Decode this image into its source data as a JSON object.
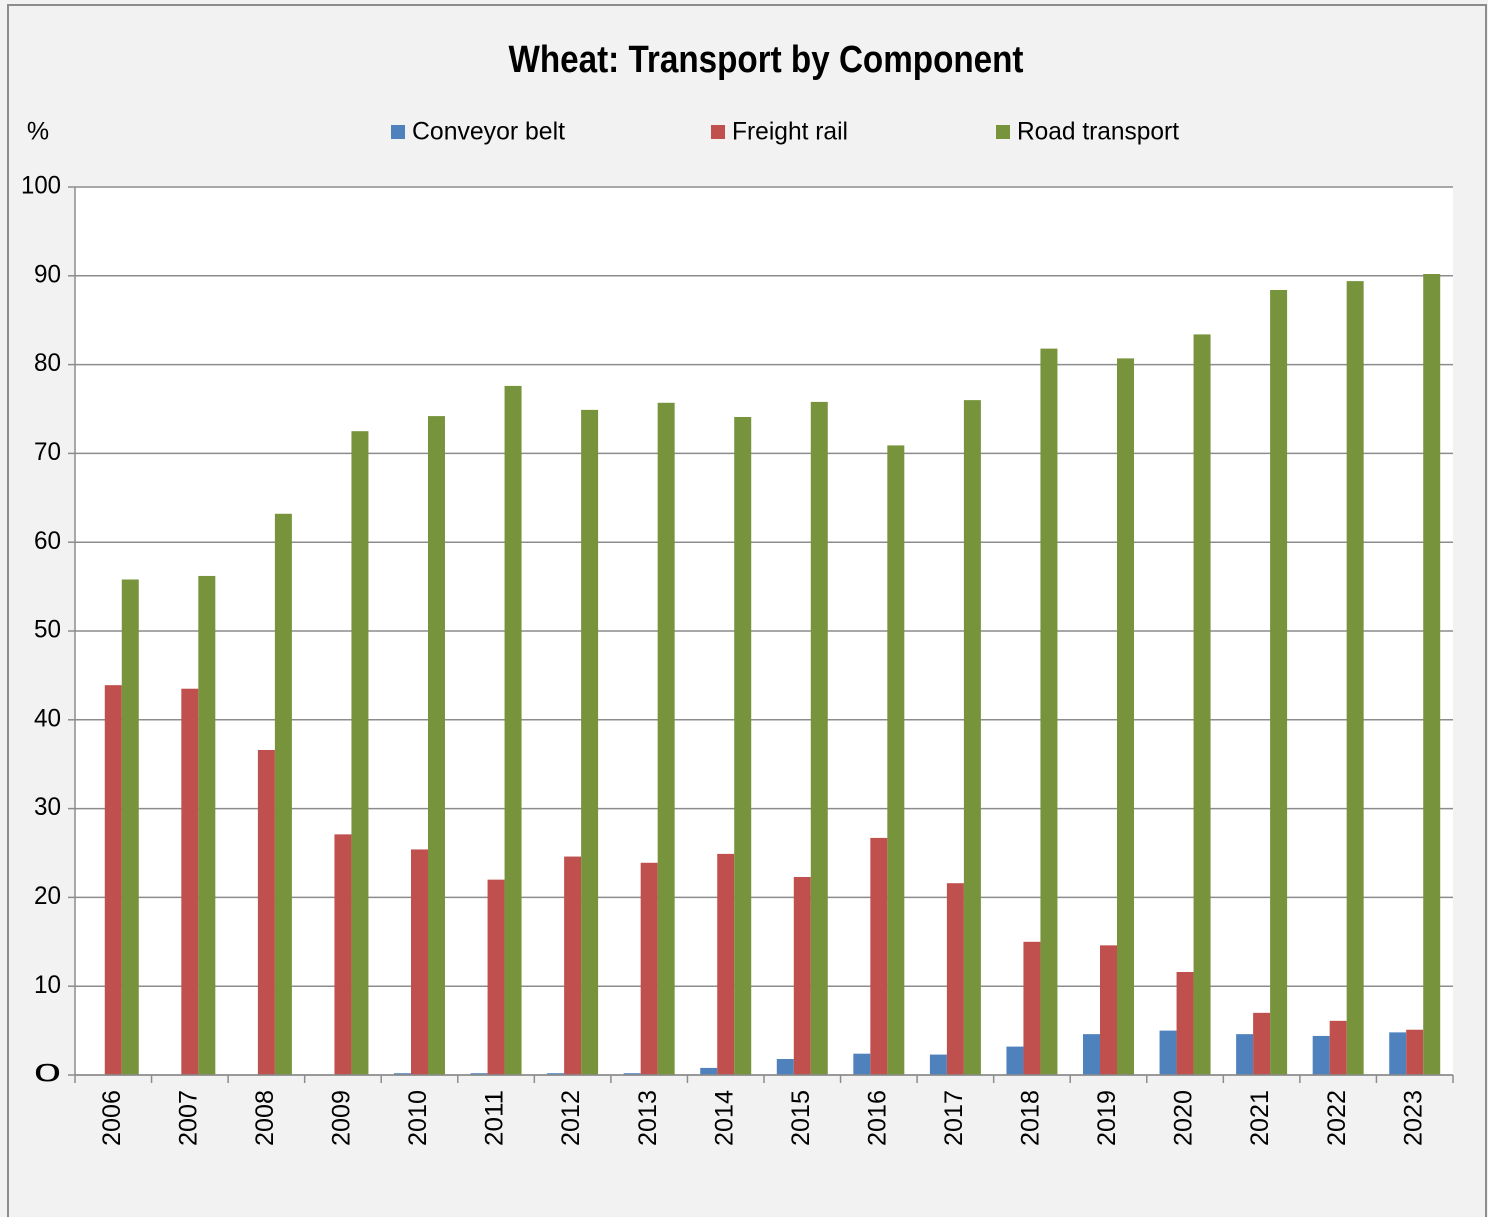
{
  "chart_data": {
    "type": "bar",
    "title": "Wheat: Transport by Component",
    "y_label": "%",
    "categories": [
      "2006",
      "2007",
      "2008",
      "2009",
      "2010",
      "2011",
      "2012",
      "2013",
      "2014",
      "2015",
      "2016",
      "2017",
      "2018",
      "2019",
      "2020",
      "2021",
      "2022",
      "2023"
    ],
    "series": [
      {
        "name": "Conveyor belt",
        "color": "#4f81bd",
        "values": [
          0,
          0,
          0,
          0,
          0.2,
          0.2,
          0.2,
          0.2,
          0.8,
          1.8,
          2.4,
          2.3,
          3.2,
          4.6,
          5.0,
          4.6,
          4.4,
          4.8
        ]
      },
      {
        "name": "Freight rail",
        "color": "#c0504d",
        "values": [
          43.9,
          43.5,
          36.6,
          27.1,
          25.4,
          22.0,
          24.6,
          23.9,
          24.9,
          22.3,
          26.7,
          21.6,
          15.0,
          14.6,
          11.6,
          7.0,
          6.1,
          5.1
        ]
      },
      {
        "name": "Road transport",
        "color": "#77933c",
        "values": [
          55.8,
          56.2,
          63.2,
          72.5,
          74.2,
          77.6,
          74.9,
          75.7,
          74.1,
          75.8,
          70.9,
          76.0,
          81.8,
          80.7,
          83.4,
          88.4,
          89.4,
          90.2
        ]
      }
    ],
    "ylim": [
      0,
      100
    ],
    "yticks": [
      0,
      10,
      20,
      30,
      40,
      50,
      60,
      70,
      80,
      90,
      100
    ],
    "grid": true,
    "legend": "top"
  }
}
